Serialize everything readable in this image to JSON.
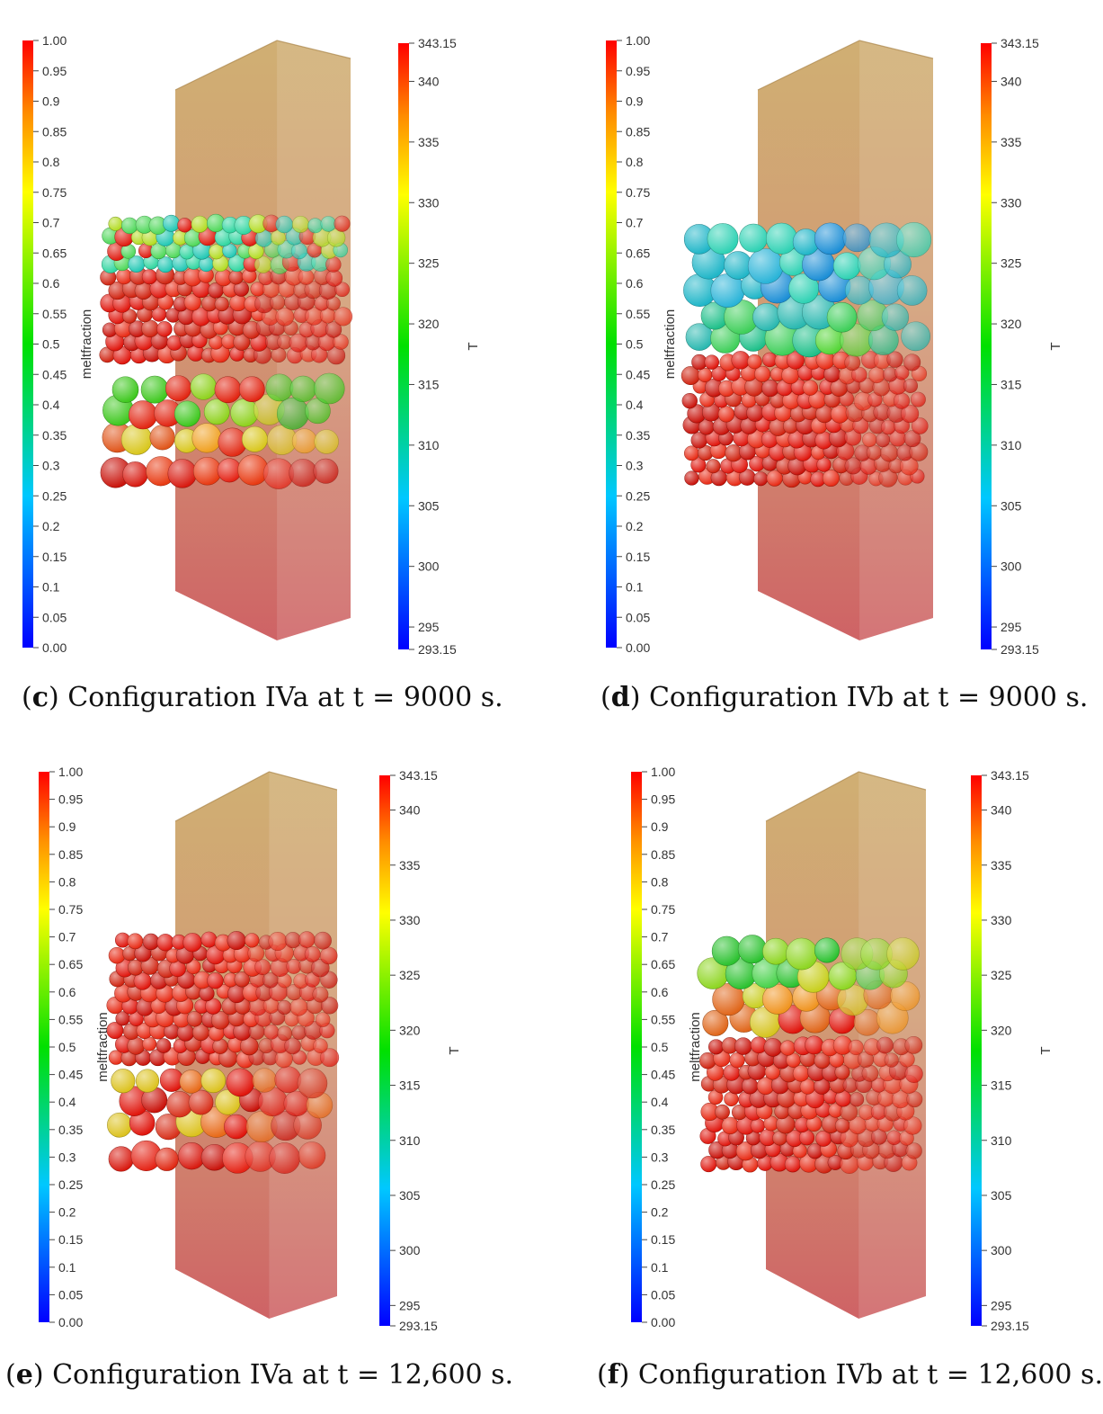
{
  "panels": [
    {
      "id": "c",
      "caption_letter": "c",
      "caption_text": "Configuration IVa at t = 9000 s.",
      "left_bar": {
        "title": "meltfraction",
        "min_label": "0.00",
        "max_label": "1.00",
        "ticks": [
          "0.05",
          "0.1",
          "0.15",
          "0.2",
          "0.25",
          "0.3",
          "0.35",
          "0.4",
          "0.45",
          "0.5",
          "0.55",
          "0.6",
          "0.65",
          "0.7",
          "0.75",
          "0.8",
          "0.85",
          "0.9",
          "0.95"
        ]
      },
      "right_bar": {
        "title": "T",
        "min_label": "293.15",
        "max_label": "343.15",
        "ticks": [
          "295",
          "300",
          "305",
          "310",
          "315",
          "320",
          "325",
          "330",
          "335",
          "340"
        ]
      },
      "layers": [
        {
          "from": 0.0,
          "to": 0.12,
          "colors": [
            "#d81a10",
            "#e52315",
            "#c9140c",
            "#e83a12"
          ],
          "r": 15
        },
        {
          "from": 0.12,
          "to": 0.22,
          "colors": [
            "#e0551a",
            "#f0a020",
            "#d9c71e",
            "#e22a14"
          ],
          "r": 15
        },
        {
          "from": 0.22,
          "to": 0.46,
          "colors": [
            "#3ec81e",
            "#8fd21e",
            "#c8d01c",
            "#e22512",
            "#2ab624"
          ],
          "r": 16
        },
        {
          "from": 0.46,
          "to": 0.8,
          "colors": [
            "#e0150c",
            "#c9120a",
            "#e82a14",
            "#d0220f"
          ],
          "r": 9
        },
        {
          "from": 0.8,
          "to": 1.0,
          "colors": [
            "#22c8b4",
            "#4fd85a",
            "#b3dc22",
            "#e01b10",
            "#2fd6a0"
          ],
          "r": 9
        }
      ]
    },
    {
      "id": "d",
      "caption_letter": "d",
      "caption_text": "Configuration IVb at t = 9000 s.",
      "left_bar": {
        "title": "meltfraction",
        "min_label": "0.00",
        "max_label": "1.00",
        "ticks": [
          "0.05",
          "0.1",
          "0.15",
          "0.2",
          "0.25",
          "0.3",
          "0.35",
          "0.4",
          "0.45",
          "0.5",
          "0.55",
          "0.6",
          "0.65",
          "0.7",
          "0.75",
          "0.8",
          "0.85",
          "0.9",
          "0.95"
        ]
      },
      "right_bar": {
        "title": "T",
        "min_label": "293.15",
        "max_label": "343.15",
        "ticks": [
          "295",
          "300",
          "305",
          "310",
          "315",
          "320",
          "325",
          "330",
          "335",
          "340"
        ]
      },
      "layers": [
        {
          "from": 0.0,
          "to": 0.49,
          "colors": [
            "#e0150c",
            "#c9120a",
            "#e82a14",
            "#d0220f"
          ],
          "r": 9
        },
        {
          "from": 0.49,
          "to": 0.68,
          "colors": [
            "#3fcf5a",
            "#1fc08a",
            "#55d637",
            "#2ab8b0"
          ],
          "r": 17
        },
        {
          "from": 0.68,
          "to": 1.0,
          "colors": [
            "#20b6c8",
            "#2ab4d8",
            "#2fd2b4",
            "#1d8fd6"
          ],
          "r": 17
        }
      ]
    },
    {
      "id": "e",
      "caption_letter": "e",
      "caption_text": "Configuration IVa at t = 12,600 s.",
      "left_bar": {
        "title": "meltfraction",
        "min_label": "0.00",
        "max_label": "1.00",
        "ticks": [
          "0.05",
          "0.1",
          "0.15",
          "0.2",
          "0.25",
          "0.3",
          "0.35",
          "0.4",
          "0.45",
          "0.5",
          "0.55",
          "0.6",
          "0.65",
          "0.7",
          "0.75",
          "0.8",
          "0.85",
          "0.9",
          "0.95"
        ]
      },
      "right_bar": {
        "title": "T",
        "min_label": "293.15",
        "max_label": "343.15",
        "ticks": [
          "295",
          "300",
          "305",
          "310",
          "315",
          "320",
          "325",
          "330",
          "335",
          "340"
        ]
      },
      "layers": [
        {
          "from": 0.0,
          "to": 0.14,
          "colors": [
            "#d81a10",
            "#e52315",
            "#c9140c",
            "#e02812"
          ],
          "r": 15
        },
        {
          "from": 0.14,
          "to": 0.44,
          "colors": [
            "#e0150c",
            "#d8301a",
            "#e86a18",
            "#c9120a",
            "#dcc21e"
          ],
          "r": 15
        },
        {
          "from": 0.44,
          "to": 1.0,
          "colors": [
            "#e0150c",
            "#c9120a",
            "#e82a14",
            "#d0220f"
          ],
          "r": 9
        }
      ]
    },
    {
      "id": "f",
      "caption_letter": "f",
      "caption_text": "Configuration IVb at t = 12,600 s.",
      "left_bar": {
        "title": "meltfraction",
        "min_label": "0.00",
        "max_label": "1.00",
        "ticks": [
          "0.05",
          "0.1",
          "0.15",
          "0.2",
          "0.25",
          "0.3",
          "0.35",
          "0.4",
          "0.45",
          "0.5",
          "0.55",
          "0.6",
          "0.65",
          "0.7",
          "0.75",
          "0.8",
          "0.85",
          "0.9",
          "0.95"
        ]
      },
      "right_bar": {
        "title": "T",
        "min_label": "293.15",
        "max_label": "343.15",
        "ticks": [
          "295",
          "300",
          "305",
          "310",
          "315",
          "320",
          "325",
          "330",
          "335",
          "340"
        ]
      },
      "layers": [
        {
          "from": 0.0,
          "to": 0.57,
          "colors": [
            "#e0150c",
            "#c9120a",
            "#e82a14",
            "#d0220f"
          ],
          "r": 9
        },
        {
          "from": 0.57,
          "to": 0.76,
          "colors": [
            "#e0661a",
            "#d6c41f",
            "#e0150c",
            "#f09420",
            "#c9ce22"
          ],
          "r": 16
        },
        {
          "from": 0.76,
          "to": 1.0,
          "colors": [
            "#47d24a",
            "#8ed622",
            "#c8cf1e",
            "#2cc230"
          ],
          "r": 16
        }
      ]
    }
  ]
}
